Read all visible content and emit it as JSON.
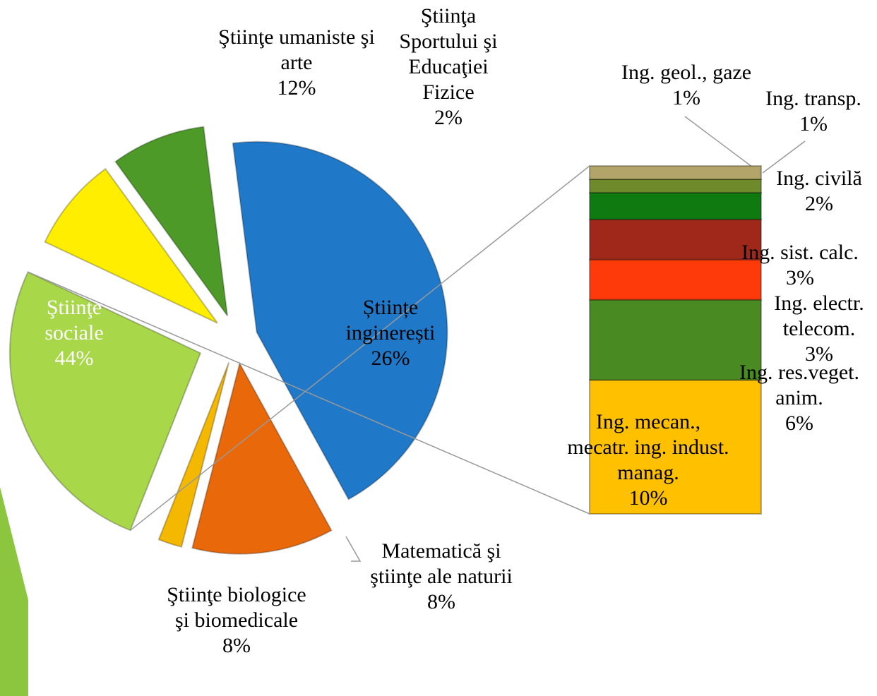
{
  "chart_data": [
    {
      "type": "pie",
      "categories": [
        "Ştiinţe sociale",
        "Ştiinţe umaniste şi arte",
        "Ştiinţa Sportului şi Educaţiei Fizice",
        "Științe inginerești",
        "Matematică şi ştiinţe ale naturii",
        "Ştiinţe biologice şi biomedicale"
      ],
      "values": [
        44,
        12,
        2,
        26,
        8,
        8
      ],
      "value_labels": [
        "44%",
        "12%",
        "2%",
        "26%",
        "8%",
        "8%"
      ],
      "colors": [
        "#1f78c8",
        "#e8680a",
        "#f5b800",
        "#a8d84a",
        "#ffee00",
        "#4e9a28"
      ]
    },
    {
      "type": "stacked_bar",
      "categories": [
        "Ing. mecan., mecatr. ing. indust. manag.",
        "Ing. res.veget. anim.",
        "Ing. electr. telecom.",
        "Ing. sist. calc.",
        "Ing. civilă",
        "Ing. transp.",
        "Ing. geol., gaze"
      ],
      "values": [
        10,
        6,
        3,
        3,
        2,
        1,
        1
      ],
      "value_labels": [
        "10%",
        "6%",
        "3%",
        "3%",
        "2%",
        "1%",
        "1%"
      ],
      "colors": [
        "#ffc000",
        "#4a8a22",
        "#ff3a0a",
        "#a0281a",
        "#0f7a0f",
        "#6e8a2a",
        "#b3a56a"
      ]
    }
  ]
}
